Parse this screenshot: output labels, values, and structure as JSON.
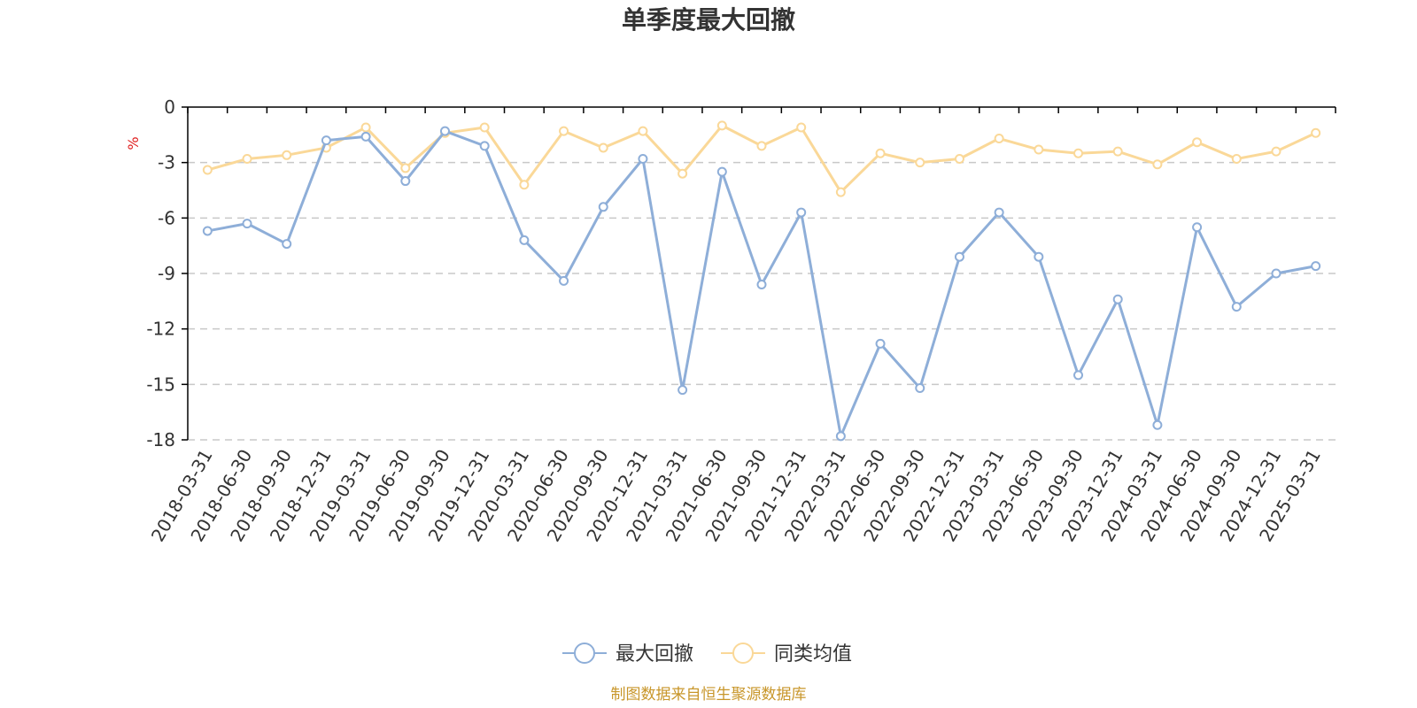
{
  "chart_data": {
    "type": "line",
    "title": "单季度最大回撤",
    "ylabel": "%",
    "ylim": [
      -18,
      0
    ],
    "yticks": [
      0,
      -3,
      -6,
      -9,
      -12,
      -15,
      -18
    ],
    "grid": true,
    "legend_position": "bottom",
    "categories": [
      "2018-03-31",
      "2018-06-30",
      "2018-09-30",
      "2018-12-31",
      "2019-03-31",
      "2019-06-30",
      "2019-09-30",
      "2019-12-31",
      "2020-03-31",
      "2020-06-30",
      "2020-09-30",
      "2020-12-31",
      "2021-03-31",
      "2021-06-30",
      "2021-09-30",
      "2021-12-31",
      "2022-03-31",
      "2022-06-30",
      "2022-09-30",
      "2022-12-31",
      "2023-03-31",
      "2023-06-30",
      "2023-09-30",
      "2023-12-31",
      "2024-03-31",
      "2024-06-30",
      "2024-09-30",
      "2024-12-31",
      "2025-03-31"
    ],
    "series": [
      {
        "name": "最大回撤",
        "color": "#8eaed8",
        "values": [
          -6.7,
          -6.3,
          -7.4,
          -1.8,
          -1.6,
          -4.0,
          -1.3,
          -2.1,
          -7.2,
          -9.4,
          -5.4,
          -2.8,
          -15.3,
          -3.5,
          -9.6,
          -5.7,
          -17.8,
          -12.8,
          -15.2,
          -8.1,
          -5.7,
          -8.1,
          -14.5,
          -10.4,
          -17.2,
          -6.5,
          -10.8,
          -9.0,
          -8.6
        ]
      },
      {
        "name": "同类均值",
        "color": "#fad898",
        "values": [
          -3.4,
          -2.8,
          -2.6,
          -2.2,
          -1.1,
          -3.3,
          -1.4,
          -1.1,
          -4.2,
          -1.3,
          -2.2,
          -1.3,
          -3.6,
          -1.0,
          -2.1,
          -1.1,
          -4.6,
          -2.5,
          -3.0,
          -2.8,
          -1.7,
          -2.3,
          -2.5,
          -2.4,
          -3.1,
          -1.9,
          -2.8,
          -2.4,
          -1.4
        ]
      }
    ]
  },
  "colors": {
    "axis": "#000000",
    "grid": "#c8c8c8",
    "unit": "#e02020",
    "source": "#c8962a"
  },
  "source_text": "制图数据来自恒生聚源数据库"
}
